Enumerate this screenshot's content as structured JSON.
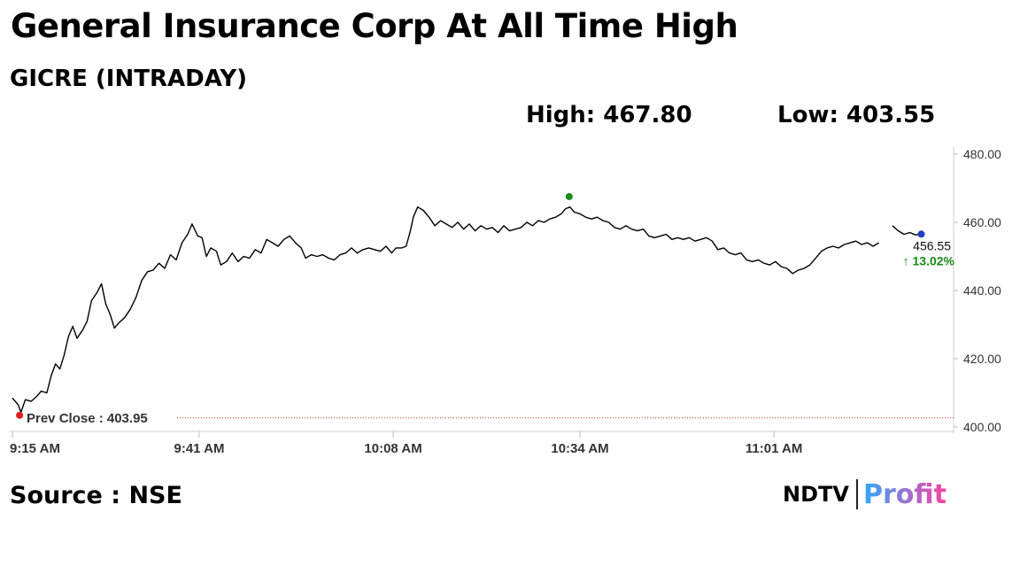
{
  "header": {
    "title": "General Insurance Corp At All Time High",
    "subtitle": "GICRE (INTRADAY)",
    "high_label": "High: 467.80",
    "low_label": "Low: 403.55"
  },
  "footer": {
    "source": "Source : NSE",
    "logo_text_left": "NDTV",
    "logo_text_right": "Profit"
  },
  "colors": {
    "line": "#000000",
    "grid_ref": "#c0392b",
    "high_marker": "#1a8a1a",
    "low_marker": "#e02020",
    "last_marker": "#1f3fbf",
    "change_up": "#1a8a1a",
    "axis_text": "#333333",
    "logo_gradient_start": "#2ea8ff",
    "logo_gradient_end": "#ff3fa4"
  },
  "chart_data": {
    "type": "line",
    "title": "GICRE (INTRADAY)",
    "xlabel": "",
    "ylabel": "",
    "ylim": [
      400,
      480
    ],
    "x_ticks": [
      {
        "label": "9:15 AM",
        "t": 0
      },
      {
        "label": "9:41 AM",
        "t": 26
      },
      {
        "label": "10:08 AM",
        "t": 53
      },
      {
        "label": "10:34 AM",
        "t": 79
      },
      {
        "label": "11:01 AM",
        "t": 106
      }
    ],
    "x_range_minutes": [
      0,
      131
    ],
    "y_ticks": [
      "480.00",
      "460.00",
      "440.00",
      "420.00",
      "400.00"
    ],
    "y_tick_values": [
      480,
      460,
      440,
      420,
      400
    ],
    "prev_close": {
      "label": "Prev Close : 403.95",
      "value": 403.95
    },
    "high": {
      "value": 467.8,
      "t": 77.5
    },
    "low": {
      "value": 403.55,
      "t": 1
    },
    "last": {
      "value": 456.55,
      "label": "456.55",
      "change": "13.02%",
      "change_arrow": "↑"
    },
    "series": [
      {
        "points": [
          [
            0,
            408.5
          ],
          [
            0.8,
            406.5
          ],
          [
            1.2,
            404.3
          ],
          [
            1.8,
            408
          ],
          [
            2.6,
            407.5
          ],
          [
            3.4,
            409
          ],
          [
            4,
            410.5
          ],
          [
            4.8,
            410
          ],
          [
            5.4,
            415
          ],
          [
            6,
            418.5
          ],
          [
            6.6,
            417
          ],
          [
            7.2,
            421
          ],
          [
            7.8,
            426.5
          ],
          [
            8.4,
            429.5
          ],
          [
            9,
            426
          ],
          [
            9.8,
            428.5
          ],
          [
            10.4,
            431
          ],
          [
            11,
            437
          ],
          [
            11.8,
            439.5
          ],
          [
            12.4,
            442
          ],
          [
            13,
            436
          ],
          [
            13.6,
            433
          ],
          [
            14.2,
            429
          ],
          [
            14.8,
            430.5
          ],
          [
            15.6,
            432
          ],
          [
            16.4,
            434.5
          ],
          [
            17.2,
            438
          ],
          [
            18,
            443
          ],
          [
            18.8,
            445.5
          ],
          [
            19.6,
            446
          ],
          [
            20.4,
            448
          ],
          [
            21.2,
            446.5
          ],
          [
            22,
            450.5
          ],
          [
            22.8,
            449
          ],
          [
            23.6,
            454
          ],
          [
            24.4,
            456.5
          ],
          [
            25,
            459.5
          ],
          [
            25.8,
            456
          ],
          [
            26.4,
            455.5
          ],
          [
            27,
            450
          ],
          [
            27.6,
            452.5
          ],
          [
            28.4,
            451.5
          ],
          [
            29,
            447.5
          ],
          [
            29.8,
            448.5
          ],
          [
            30.6,
            451
          ],
          [
            31.4,
            448.5
          ],
          [
            32.2,
            450
          ],
          [
            33,
            449.5
          ],
          [
            33.8,
            452
          ],
          [
            34.6,
            451
          ],
          [
            35.4,
            455
          ],
          [
            36.2,
            454
          ],
          [
            37,
            453
          ],
          [
            37.8,
            455
          ],
          [
            38.6,
            456
          ],
          [
            39.4,
            454
          ],
          [
            40.2,
            452.5
          ],
          [
            40.8,
            449.5
          ],
          [
            41.6,
            450.5
          ],
          [
            42.4,
            450
          ],
          [
            43.2,
            450.5
          ],
          [
            44,
            449.5
          ],
          [
            44.8,
            449
          ],
          [
            45.6,
            450.5
          ],
          [
            46.4,
            451
          ],
          [
            47.2,
            452.5
          ],
          [
            48,
            451
          ],
          [
            48.8,
            452
          ],
          [
            49.6,
            452.5
          ],
          [
            50.4,
            452
          ],
          [
            51.2,
            451.5
          ],
          [
            52,
            453
          ],
          [
            52.8,
            451
          ],
          [
            53.4,
            452.5
          ],
          [
            54.2,
            452.5
          ],
          [
            54.8,
            453
          ],
          [
            55.4,
            457.5
          ],
          [
            55.8,
            461.5
          ],
          [
            56.4,
            464.5
          ],
          [
            57.2,
            463.5
          ],
          [
            58,
            461.5
          ],
          [
            58.8,
            459
          ],
          [
            59.6,
            460.5
          ],
          [
            60.4,
            459.5
          ],
          [
            61.2,
            458.5
          ],
          [
            62,
            460
          ],
          [
            62.8,
            458
          ],
          [
            63.6,
            459.5
          ],
          [
            64.4,
            457.5
          ],
          [
            65.2,
            459
          ],
          [
            66,
            458
          ],
          [
            66.8,
            458.5
          ],
          [
            67.6,
            457
          ],
          [
            68.4,
            459
          ],
          [
            69.2,
            457.5
          ],
          [
            70,
            458
          ],
          [
            70.8,
            458.5
          ],
          [
            71.6,
            460
          ],
          [
            72.4,
            459
          ],
          [
            73.2,
            460.5
          ],
          [
            74,
            460
          ],
          [
            74.8,
            461
          ],
          [
            75.6,
            461.5
          ],
          [
            76.4,
            462.5
          ],
          [
            77,
            464
          ],
          [
            77.6,
            464.5
          ],
          [
            78.2,
            463
          ],
          [
            79,
            462.5
          ],
          [
            79.8,
            461.5
          ],
          [
            80.6,
            461
          ],
          [
            81.4,
            461.5
          ],
          [
            82.2,
            460.5
          ],
          [
            83,
            460
          ],
          [
            83.8,
            458.5
          ],
          [
            84.6,
            458
          ],
          [
            85.4,
            459
          ],
          [
            86.2,
            458
          ],
          [
            87,
            457.5
          ],
          [
            87.8,
            458
          ],
          [
            88.6,
            456
          ],
          [
            89.4,
            455.5
          ],
          [
            90.2,
            456
          ],
          [
            91,
            456.5
          ],
          [
            91.8,
            455
          ],
          [
            92.6,
            455.5
          ],
          [
            93.4,
            455
          ],
          [
            94.2,
            455.5
          ],
          [
            95,
            454.5
          ],
          [
            95.8,
            455
          ],
          [
            96.6,
            455.5
          ],
          [
            97.4,
            454.5
          ],
          [
            98.2,
            452
          ],
          [
            99,
            452.5
          ],
          [
            99.8,
            451
          ],
          [
            100.6,
            450.5
          ],
          [
            101.4,
            451
          ],
          [
            102.2,
            449
          ],
          [
            103,
            448.5
          ],
          [
            103.8,
            449
          ],
          [
            104.6,
            448
          ],
          [
            105.4,
            447.5
          ],
          [
            106.2,
            448.5
          ],
          [
            107,
            447
          ],
          [
            107.8,
            446.5
          ],
          [
            108.6,
            445
          ],
          [
            109.4,
            446
          ],
          [
            110.2,
            446.5
          ],
          [
            111,
            447.5
          ],
          [
            111.8,
            449.5
          ],
          [
            112.6,
            451.5
          ],
          [
            113.4,
            452.5
          ],
          [
            114.2,
            453
          ],
          [
            115,
            452.5
          ],
          [
            115.8,
            453.5
          ],
          [
            116.6,
            454
          ],
          [
            117.4,
            454.5
          ],
          [
            118.2,
            453.5
          ],
          [
            119,
            454
          ],
          [
            119.8,
            453
          ],
          [
            120.6,
            454
          ],
          [
            122.5,
            459
          ],
          [
            123.3,
            457.5
          ],
          [
            124.1,
            456.5
          ],
          [
            124.9,
            457
          ],
          [
            125.7,
            456.3
          ],
          [
            126.5,
            456.55
          ]
        ]
      }
    ],
    "grid": false,
    "legend": "none"
  }
}
